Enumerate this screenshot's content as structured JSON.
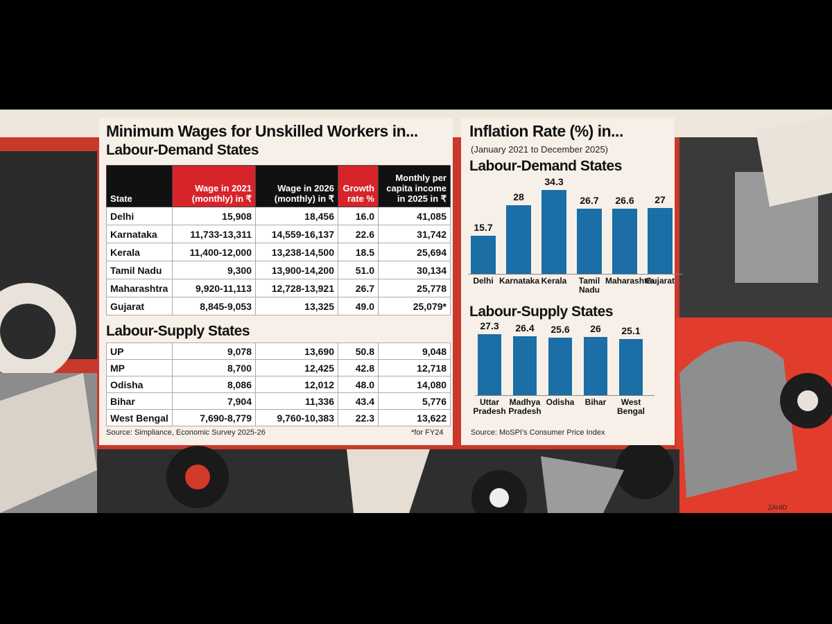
{
  "table": {
    "title": "Minimum Wages for Unskilled Workers in...",
    "subtitle": "Labour-Demand States",
    "columns": [
      "State",
      "Wage in 2021 (monthly) in ₹",
      "Wage in 2026 (monthly) in ₹",
      "Growth rate %",
      "Monthly per capita income in 2025 in ₹"
    ],
    "rows": [
      [
        "Delhi",
        "15,908",
        "18,456",
        "16.0",
        "41,085"
      ],
      [
        "Karnataka",
        "11,733-13,311",
        "14,559-16,137",
        "22.6",
        "31,742"
      ],
      [
        "Kerala",
        "11,400-12,000",
        "13,238-14,500",
        "18.5",
        "25,694"
      ],
      [
        "Tamil Nadu",
        "9,300",
        "13,900-14,200",
        "51.0",
        "30,134"
      ],
      [
        "Maharashtra",
        "9,920-11,113",
        "12,728-13,921",
        "26.7",
        "25,778"
      ],
      [
        "Gujarat",
        "8,845-9,053",
        "13,325",
        "49.0",
        "25,079*"
      ]
    ],
    "section": "Labour-Supply States",
    "section_rows": [
      [
        "UP",
        "9,078",
        "13,690",
        "50.8",
        "9,048"
      ],
      [
        "MP",
        "8,700",
        "12,425",
        "42.8",
        "12,718"
      ],
      [
        "Odisha",
        "8,086",
        "12,012",
        "48.0",
        "14,080"
      ],
      [
        "Bihar",
        "7,904",
        "11,336",
        "43.4",
        "5,776"
      ],
      [
        "West Bengal",
        "7,690-8,779",
        "9,760-10,383",
        "22.3",
        "13,622"
      ]
    ],
    "source": "Source: Simpliance, Economic Survey 2025-26",
    "note": "*for FY24"
  },
  "inflation": {
    "title": "Inflation Rate (%) in...",
    "subtitle": "(January 2021 to December 2025)",
    "source": "Source: MoSPI's Consumer Price Index"
  },
  "chart_data": [
    {
      "type": "bar",
      "title": "Labour-Demand States",
      "categories": [
        "Delhi",
        "Karnataka",
        "Kerala",
        "Tamil Nadu",
        "Maharashtra",
        "Gujarat"
      ],
      "values": [
        15.7,
        28,
        34.3,
        26.7,
        26.6,
        27
      ],
      "color": "#1b6ea6"
    },
    {
      "type": "bar",
      "title": "Labour-Supply States",
      "categories": [
        "Uttar Pradesh",
        "Madhya Pradesh",
        "Odisha",
        "Bihar",
        "West Bengal"
      ],
      "values": [
        27.3,
        26.4,
        25.6,
        26,
        25.1
      ],
      "color": "#1b6ea6"
    }
  ],
  "credit": "ZAHID"
}
